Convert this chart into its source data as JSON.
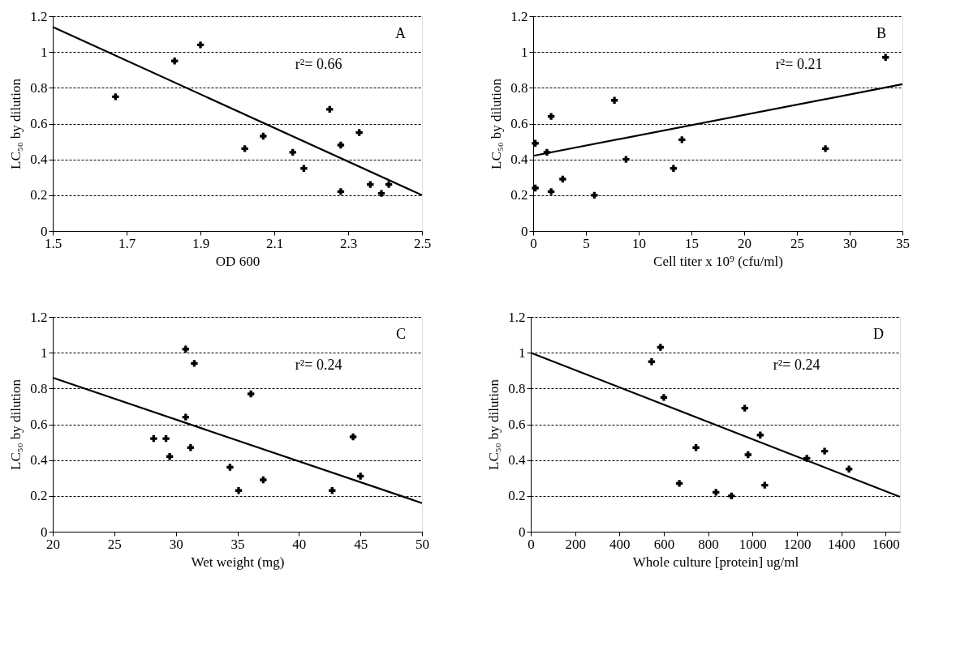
{
  "chart_data": [
    {
      "type": "scatter",
      "xlabel": "OD 600",
      "ylabel": "LC₅₀ by dilution",
      "annotations": [
        "A",
        "r²= 0.66"
      ],
      "xlim": [
        1.5,
        2.5
      ],
      "ylim": [
        0,
        1.2
      ],
      "xticks": [
        1.5,
        1.7,
        1.9,
        2.1,
        2.3,
        2.5
      ],
      "yticks": [
        0,
        0.2,
        0.4,
        0.6,
        0.8,
        1,
        1.2
      ],
      "grid": "y",
      "line_style": "solid",
      "series": [
        {
          "marker": "cross",
          "color": "#000000",
          "x": [
            1.67,
            1.83,
            1.9,
            2.02,
            2.07,
            2.15,
            2.18,
            2.25,
            2.28,
            2.28,
            2.33,
            2.36,
            2.39,
            2.41
          ],
          "values": [
            0.75,
            0.95,
            1.04,
            0.46,
            0.53,
            0.44,
            0.35,
            0.68,
            0.48,
            0.22,
            0.55,
            0.26,
            0.21,
            0.26
          ]
        },
        {
          "type": "line",
          "marker": "none",
          "color": "#000000",
          "x": [
            1.5,
            2.5
          ],
          "values": [
            1.14,
            0.2
          ]
        }
      ]
    },
    {
      "type": "scatter",
      "xlabel": "Cell titer x 10⁹ (cfu/ml)",
      "ylabel": "LC₅₀ by dilution",
      "annotations": [
        "B",
        "r²= 0.21"
      ],
      "xlim": [
        0,
        35
      ],
      "ylim": [
        0,
        1.2
      ],
      "xticks": [
        0,
        5,
        10,
        15,
        20,
        25,
        30,
        35
      ],
      "yticks": [
        0,
        0.2,
        0.4,
        0.6,
        0.8,
        1,
        1.2
      ],
      "grid": "y",
      "line_style": "solid",
      "series": [
        {
          "marker": "cross",
          "color": "#000000",
          "x": [
            0.2,
            0.2,
            1.3,
            1.7,
            1.7,
            2.8,
            5.8,
            7.7,
            8.8,
            13.3,
            14.1,
            27.7,
            33.4
          ],
          "values": [
            0.49,
            0.24,
            0.44,
            0.64,
            0.22,
            0.29,
            0.2,
            0.73,
            0.4,
            0.35,
            0.51,
            0.46,
            0.97
          ]
        },
        {
          "type": "line",
          "marker": "none",
          "color": "#000000",
          "x": [
            0,
            35
          ],
          "values": [
            0.42,
            0.82
          ]
        }
      ]
    },
    {
      "type": "scatter",
      "xlabel": "Wet weight (mg)",
      "ylabel": "LC₅₀ by dilution",
      "annotations": [
        "C",
        "r²= 0.24"
      ],
      "xlim": [
        20,
        50
      ],
      "ylim": [
        0,
        1.2
      ],
      "xticks": [
        20,
        25,
        30,
        35,
        40,
        45,
        50
      ],
      "yticks": [
        0,
        0.2,
        0.4,
        0.6,
        0.8,
        1,
        1.2
      ],
      "grid": "y",
      "line_style": "solid",
      "series": [
        {
          "marker": "cross",
          "color": "#000000",
          "x": [
            30.8,
            31.5,
            36.1,
            30.8,
            28.2,
            29.2,
            29.5,
            31.2,
            34.4,
            35.1,
            37.1,
            42.7,
            44.4,
            45.0
          ],
          "values": [
            1.02,
            0.94,
            0.77,
            0.64,
            0.52,
            0.52,
            0.42,
            0.47,
            0.36,
            0.23,
            0.29,
            0.23,
            0.53,
            0.31
          ]
        },
        {
          "type": "line",
          "marker": "none",
          "color": "#000000",
          "x": [
            20,
            50
          ],
          "values": [
            0.86,
            0.16
          ]
        }
      ]
    },
    {
      "type": "scatter",
      "xlabel": "Whole culture [protein] ug/ml",
      "ylabel": "LC₅₀ by dilution",
      "annotations": [
        "D",
        "r²= 0.24"
      ],
      "xlim": [
        0,
        1665
      ],
      "ylim": [
        0,
        1.2
      ],
      "xticks": [
        0,
        200,
        400,
        600,
        800,
        1000,
        1200,
        1400,
        1600
      ],
      "yticks": [
        0,
        0.2,
        0.4,
        0.6,
        0.8,
        1,
        1.2
      ],
      "grid": "y",
      "line_style": "solid",
      "series": [
        {
          "marker": "cross",
          "color": "#000000",
          "x": [
            585,
            545,
            600,
            965,
            1035,
            745,
            980,
            1245,
            1325,
            1435,
            670,
            1055,
            835,
            905
          ],
          "values": [
            1.03,
            0.95,
            0.75,
            0.69,
            0.54,
            0.47,
            0.43,
            0.41,
            0.45,
            0.35,
            0.27,
            0.26,
            0.22,
            0.2
          ]
        },
        {
          "type": "line",
          "marker": "none",
          "color": "#000000",
          "x": [
            0,
            1665
          ],
          "values": [
            1.0,
            0.195
          ]
        }
      ]
    }
  ]
}
